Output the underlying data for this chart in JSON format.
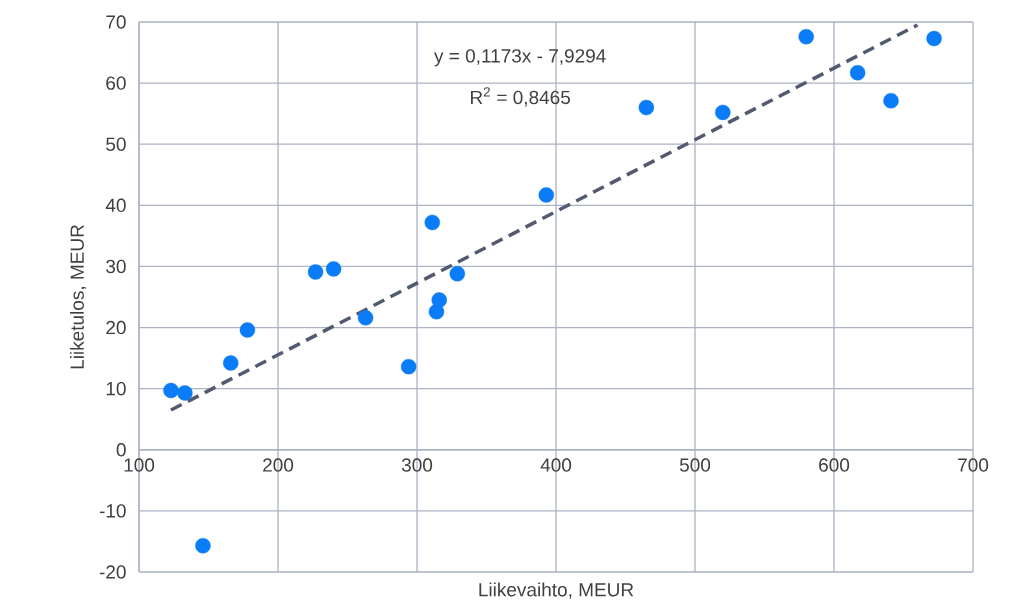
{
  "chart_data": {
    "type": "scatter",
    "xlabel": "Liikevaihto, MEUR",
    "ylabel": "Liiketulos, MEUR",
    "xlim": [
      100,
      700
    ],
    "xticks": [
      100,
      200,
      300,
      400,
      500,
      600,
      700
    ],
    "ylim": [
      -20,
      70
    ],
    "yticks": [
      -20,
      -10,
      0,
      10,
      20,
      30,
      40,
      50,
      60,
      70
    ],
    "grid": true,
    "annotations": [
      "y = 0,1173x - 7,9294",
      "R$^{2}$ = 0,8465"
    ],
    "marker": "circle",
    "series": [
      {
        "type": "scatter",
        "color": "#0a7cf8",
        "x": [
          123,
          133,
          146,
          166,
          178,
          227,
          240,
          263,
          294,
          311,
          314,
          316,
          329,
          393,
          465,
          520,
          580,
          617,
          641,
          672
        ],
        "values": [
          9.7,
          9.3,
          -15.7,
          14.2,
          19.6,
          29.1,
          29.6,
          21.6,
          13.6,
          37.2,
          22.6,
          24.5,
          28.8,
          41.7,
          56,
          55.2,
          67.6,
          61.7,
          57.1,
          67.3
        ]
      },
      {
        "type": "line",
        "marker": "none",
        "line_style": "dashed",
        "color": "#515a6e",
        "x": [
          123,
          660
        ],
        "values": [
          6.5,
          69.5
        ]
      }
    ]
  }
}
